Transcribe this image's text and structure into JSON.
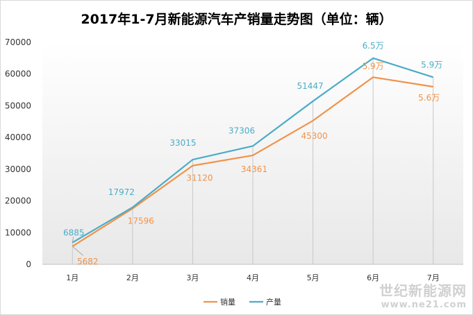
{
  "chart_data": {
    "type": "line",
    "title": "2017年1-7月新能源汽车产销量走势图（单位：辆）",
    "categories": [
      "1月",
      "2月",
      "3月",
      "4月",
      "5月",
      "6月",
      "7月"
    ],
    "ylim": [
      0,
      70000
    ],
    "yticks": [
      "0",
      "10000",
      "20000",
      "30000",
      "40000",
      "50000",
      "60000",
      "70000"
    ],
    "grid": false,
    "legend_position": "bottom-center",
    "series": [
      {
        "name": "销量",
        "color": "#f0924a",
        "values": [
          5682,
          17596,
          31120,
          34361,
          45300,
          59000,
          56000
        ],
        "labels": [
          "5682",
          "17596",
          "31120",
          "34361",
          "45300",
          "5.9万",
          "5.6万"
        ]
      },
      {
        "name": "产量",
        "color": "#4bacc6",
        "values": [
          6885,
          17972,
          33015,
          37306,
          51447,
          65000,
          59000
        ],
        "labels": [
          "6885",
          "17972",
          "33015",
          "37306",
          "51447",
          "6.5万",
          "5.9万"
        ]
      }
    ]
  },
  "watermark": {
    "text": "世纪新能源网",
    "url": "www.ne21.com"
  }
}
